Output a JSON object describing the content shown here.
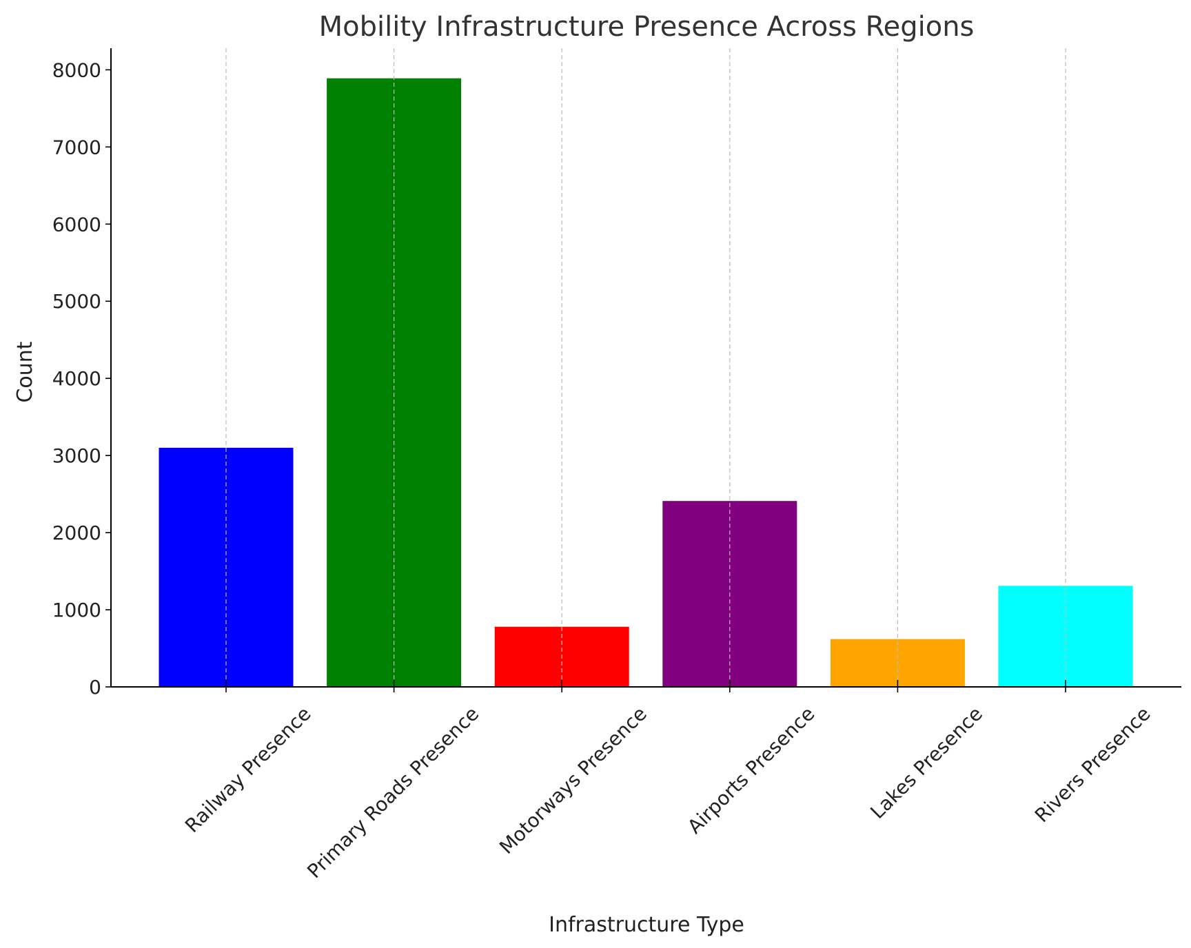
{
  "chart_data": {
    "type": "bar",
    "title": "Mobility Infrastructure Presence Across Regions",
    "xlabel": "Infrastructure Type",
    "ylabel": "Count",
    "categories": [
      "Railway Presence",
      "Primary Roads Presence",
      "Motorways Presence",
      "Airports Presence",
      "Lakes Presence",
      "Rivers Presence"
    ],
    "values": [
      3100,
      7890,
      780,
      2410,
      620,
      1310
    ],
    "colors": [
      "#0000ff",
      "#008000",
      "#ff0000",
      "#800080",
      "#ffa500",
      "#00ffff"
    ],
    "ylim": [
      0,
      8280
    ],
    "yticks": [
      0,
      1000,
      2000,
      3000,
      4000,
      5000,
      6000,
      7000,
      8000
    ],
    "grid": "x-dashed",
    "legend": "none"
  }
}
